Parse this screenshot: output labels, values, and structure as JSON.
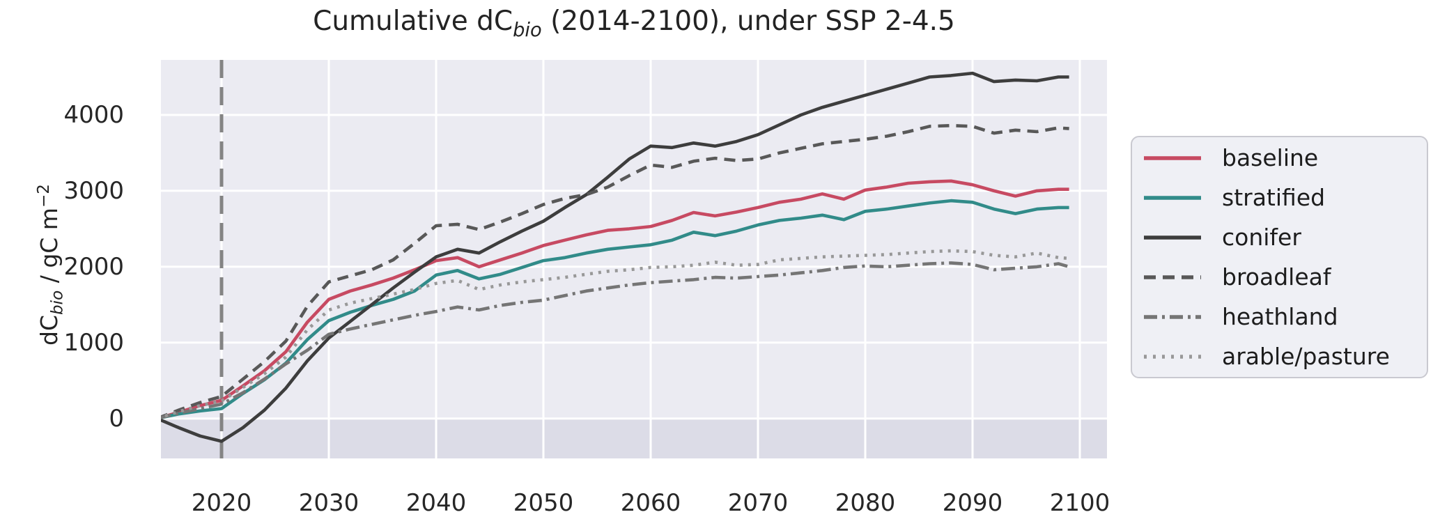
{
  "figure": {
    "title": {
      "prefix": "Cumulative dC",
      "subscript": "bio",
      "suffix": " (2014-2100), under SSP 2-4.5"
    },
    "y_axis": {
      "label_prefix": "dC",
      "label_subscript": "bio",
      "label_mid": " / gC m",
      "label_superscript": "−2",
      "tick_labels": [
        "0",
        "1000",
        "2000",
        "3000",
        "4000"
      ]
    },
    "x_axis": {
      "tick_labels": [
        "2020",
        "2030",
        "2040",
        "2050",
        "2060",
        "2070",
        "2080",
        "2090",
        "2100"
      ]
    },
    "colors": {
      "axes_background": "#ebebf2",
      "below_zero_band": "#dcdce7",
      "gridline": "#ffffff",
      "vline": "#848484",
      "text": "#262626"
    }
  },
  "chart_data": {
    "type": "line",
    "title": "Cumulative dC_bio (2014-2100), under SSP 2-4.5",
    "xlabel": "",
    "ylabel": "dC_bio / gC m^-2",
    "xlim": [
      2014.3,
      2102.5
    ],
    "ylim": [
      -525,
      4725
    ],
    "xticks": [
      2020,
      2030,
      2040,
      2050,
      2060,
      2070,
      2080,
      2090,
      2100
    ],
    "yticks": [
      0,
      1000,
      2000,
      3000,
      4000
    ],
    "grid": true,
    "legend_position": "outside center right",
    "vline": {
      "x": 2020,
      "style": "dashed",
      "color": "#848484"
    },
    "x": [
      2014,
      2016,
      2018,
      2020,
      2022,
      2024,
      2026,
      2028,
      2030,
      2032,
      2034,
      2036,
      2038,
      2040,
      2042,
      2044,
      2046,
      2048,
      2050,
      2052,
      2054,
      2056,
      2058,
      2060,
      2062,
      2064,
      2066,
      2068,
      2070,
      2072,
      2074,
      2076,
      2078,
      2080,
      2082,
      2084,
      2086,
      2088,
      2090,
      2092,
      2094,
      2096,
      2098,
      2099
    ],
    "series": [
      {
        "name": "baseline",
        "color": "#c74a62",
        "dash": "solid",
        "values": [
          0,
          80,
          170,
          240,
          430,
          630,
          880,
          1270,
          1570,
          1680,
          1760,
          1850,
          1960,
          2080,
          2120,
          2000,
          2090,
          2180,
          2280,
          2350,
          2420,
          2480,
          2500,
          2530,
          2610,
          2715,
          2670,
          2720,
          2780,
          2850,
          2890,
          2960,
          2890,
          3010,
          3050,
          3100,
          3120,
          3130,
          3080,
          3000,
          2930,
          3000,
          3020,
          3020
        ]
      },
      {
        "name": "stratified",
        "color": "#318b89",
        "dash": "solid",
        "values": [
          0,
          60,
          100,
          130,
          330,
          510,
          730,
          1040,
          1290,
          1400,
          1490,
          1570,
          1680,
          1890,
          1950,
          1840,
          1900,
          1990,
          2080,
          2120,
          2180,
          2230,
          2260,
          2290,
          2350,
          2455,
          2410,
          2470,
          2550,
          2610,
          2640,
          2680,
          2620,
          2730,
          2760,
          2800,
          2840,
          2870,
          2850,
          2760,
          2700,
          2760,
          2780,
          2780
        ]
      },
      {
        "name": "conifer",
        "color": "#3d3d3d",
        "dash": "solid",
        "values": [
          0,
          -120,
          -230,
          -300,
          -120,
          110,
          400,
          760,
          1060,
          1280,
          1500,
          1720,
          1930,
          2130,
          2230,
          2180,
          2330,
          2470,
          2600,
          2780,
          2950,
          3180,
          3420,
          3590,
          3570,
          3630,
          3590,
          3650,
          3740,
          3870,
          4000,
          4100,
          4180,
          4260,
          4340,
          4420,
          4500,
          4520,
          4550,
          4440,
          4460,
          4450,
          4500,
          4500
        ]
      },
      {
        "name": "broadleaf",
        "color": "#585858",
        "dash": "dashed",
        "values": [
          0,
          110,
          210,
          290,
          520,
          750,
          1020,
          1480,
          1800,
          1880,
          1960,
          2090,
          2310,
          2540,
          2560,
          2490,
          2590,
          2700,
          2820,
          2900,
          2950,
          3050,
          3200,
          3340,
          3310,
          3390,
          3430,
          3400,
          3420,
          3500,
          3560,
          3620,
          3650,
          3680,
          3720,
          3780,
          3850,
          3860,
          3850,
          3760,
          3800,
          3780,
          3830,
          3820
        ]
      },
      {
        "name": "heathland",
        "color": "#757575",
        "dash": "dashdot",
        "values": [
          0,
          70,
          130,
          190,
          340,
          520,
          720,
          900,
          1110,
          1180,
          1240,
          1300,
          1360,
          1410,
          1470,
          1430,
          1490,
          1530,
          1560,
          1620,
          1680,
          1720,
          1760,
          1790,
          1810,
          1830,
          1860,
          1850,
          1870,
          1890,
          1920,
          1950,
          1990,
          2010,
          2000,
          2020,
          2040,
          2050,
          2030,
          1960,
          1980,
          2000,
          2040,
          2000
        ]
      },
      {
        "name": "arable/pasture",
        "color": "#989898",
        "dash": "dotted",
        "values": [
          0,
          90,
          170,
          230,
          410,
          590,
          810,
          1170,
          1430,
          1520,
          1580,
          1640,
          1700,
          1780,
          1820,
          1700,
          1760,
          1800,
          1830,
          1860,
          1900,
          1940,
          1960,
          1990,
          2000,
          2020,
          2060,
          2020,
          2030,
          2090,
          2110,
          2130,
          2140,
          2150,
          2160,
          2180,
          2200,
          2210,
          2200,
          2150,
          2130,
          2180,
          2120,
          2110
        ]
      }
    ]
  }
}
